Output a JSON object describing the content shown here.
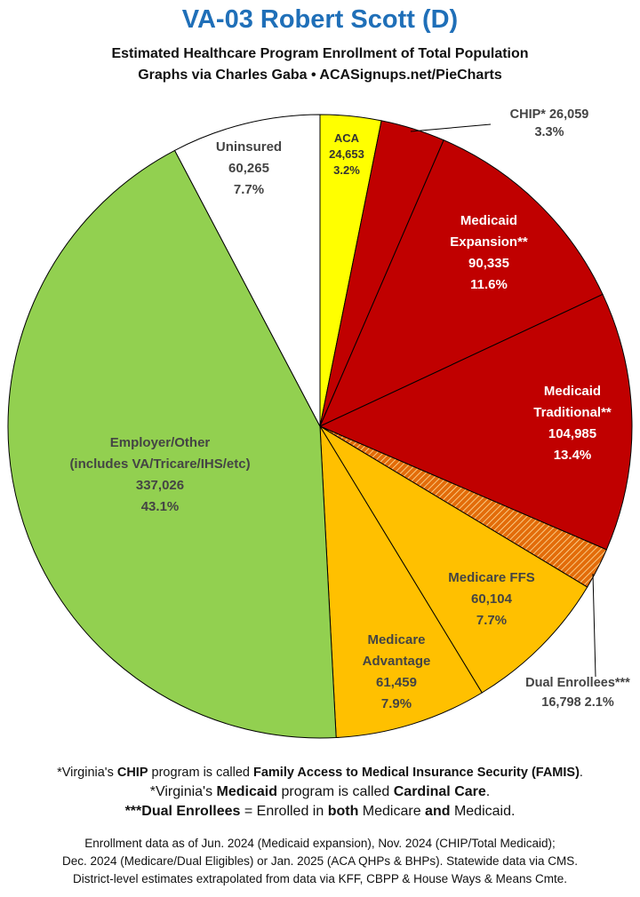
{
  "header": {
    "title": "VA-03 Robert Scott (D)",
    "subtitle1": "Estimated Healthcare Program Enrollment of Total Population",
    "subtitle2": "Graphs via Charles Gaba  •  ACASignups.net/PieCharts"
  },
  "chart_data": {
    "type": "pie",
    "start_angle_deg": 0,
    "direction": "clockwise",
    "slices": [
      {
        "label_lines": [
          "ACA",
          "24,653",
          "3.2%"
        ],
        "value": 24653,
        "percent": 3.2,
        "color": "#ffff00",
        "text_color": "#333333"
      },
      {
        "label_lines": [
          "CHIP* 26,059",
          "3.3%"
        ],
        "value": 26059,
        "percent": 3.3,
        "color": "#c00000",
        "text_color": "#444444"
      },
      {
        "label_lines": [
          "Medicaid",
          "Expansion**",
          "90,335",
          "11.6%"
        ],
        "value": 90335,
        "percent": 11.6,
        "color": "#c00000",
        "text_color": "#ffffff"
      },
      {
        "label_lines": [
          "Medicaid",
          "Traditional**",
          "104,985",
          "13.4%"
        ],
        "value": 104985,
        "percent": 13.4,
        "color": "#c00000",
        "text_color": "#ffffff"
      },
      {
        "label_lines": [
          "Dual Enrollees***",
          "16,798 2.1%"
        ],
        "value": 16798,
        "percent": 2.1,
        "color": "#e36c0a",
        "pattern": "hatch",
        "text_color": "#444444"
      },
      {
        "label_lines": [
          "Medicare FFS",
          "60,104",
          "7.7%"
        ],
        "value": 60104,
        "percent": 7.7,
        "color": "#ffc000",
        "text_color": "#444444"
      },
      {
        "label_lines": [
          "Medicare",
          "Advantage",
          "61,459",
          "7.9%"
        ],
        "value": 61459,
        "percent": 7.9,
        "color": "#ffc000",
        "text_color": "#444444"
      },
      {
        "label_lines": [
          "Employer/Other",
          "(includes VA/Tricare/IHS/etc)",
          "337,026",
          "43.1%"
        ],
        "value": 337026,
        "percent": 43.1,
        "color": "#92d050",
        "text_color": "#444444"
      },
      {
        "label_lines": [
          "Uninsured",
          "60,265",
          "7.7%"
        ],
        "value": 60265,
        "percent": 7.7,
        "color": "#ffffff",
        "text_color": "#444444"
      }
    ]
  },
  "footnotes": {
    "chip": {
      "a": "*Virginia's ",
      "b": "CHIP",
      "c": " program is called ",
      "d": "Family Access to Medical Insurance Security (FAMIS)",
      "e": "."
    },
    "medicaid": {
      "a": "*Virginia's ",
      "b": "Medicaid",
      "c": " program is called ",
      "d": "Cardinal Care",
      "e": "."
    },
    "dual": {
      "a": "***Dual Enrollees",
      "b": " = Enrolled in ",
      "c": "both",
      "d": " Medicare ",
      "e": "and",
      "f": " Medicaid."
    }
  },
  "sources": {
    "line1": "Enrollment data as of Jun. 2024 (Medicaid expansion), Nov. 2024 (CHIP/Total Medicaid);",
    "line2": "Dec. 2024 (Medicare/Dual Eligibles) or Jan. 2025 (ACA QHPs & BHPs). Statewide data via CMS.",
    "line3": "District-level estimates extrapolated from data via KFF, CBPP & House Ways & Means Cmte."
  }
}
